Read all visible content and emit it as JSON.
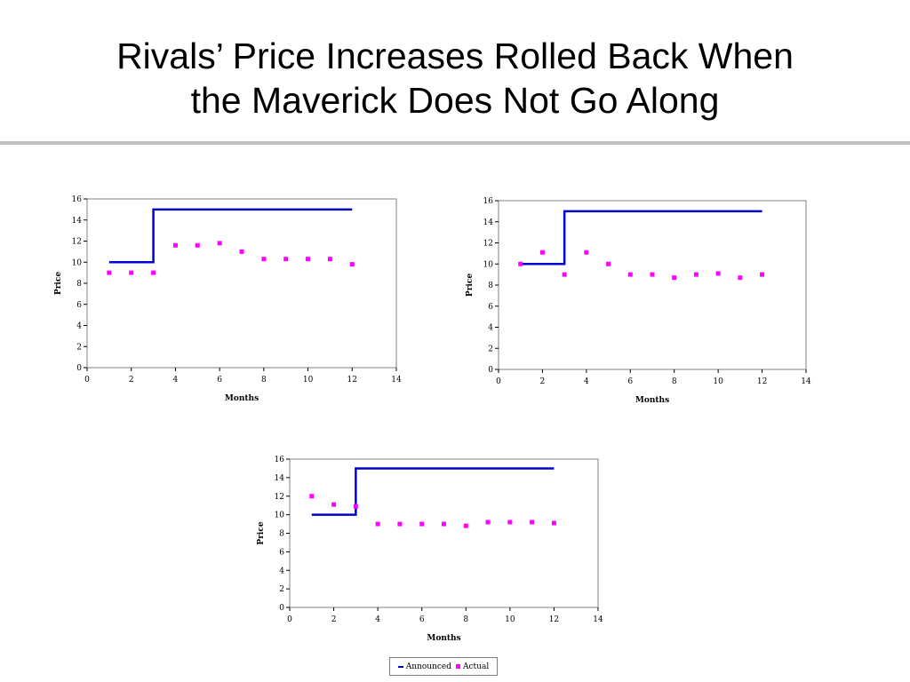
{
  "slide": {
    "title_line1": "Rivals’ Price Increases Rolled Back When",
    "title_line2": "the Maverick Does Not Go Along"
  },
  "legend": {
    "announced_label": "Announced",
    "actual_label": "Actual"
  },
  "colors": {
    "announced": "#0000cc",
    "actual": "#ff00ff",
    "divider": "#bfbfbf"
  },
  "chart_data": [
    {
      "type": "line",
      "xlabel": "Months",
      "ylabel": "Price",
      "xlim": [
        0,
        14
      ],
      "ylim": [
        0,
        16
      ],
      "xticks": [
        0,
        2,
        4,
        6,
        8,
        10,
        12,
        14
      ],
      "yticks": [
        0,
        2,
        4,
        6,
        8,
        10,
        12,
        14,
        16
      ],
      "grid": false,
      "series": [
        {
          "name": "Announced",
          "style": "step-line",
          "x": [
            1,
            3,
            3,
            12
          ],
          "y": [
            10,
            10,
            15,
            15
          ]
        },
        {
          "name": "Actual",
          "style": "markers",
          "x": [
            1,
            2,
            3,
            4,
            5,
            6,
            7,
            8,
            9,
            10,
            11,
            12
          ],
          "y": [
            9,
            9,
            9,
            11.6,
            11.6,
            11.8,
            11,
            10.3,
            10.3,
            10.3,
            10.3,
            9.8
          ]
        }
      ]
    },
    {
      "type": "line",
      "xlabel": "Months",
      "ylabel": "Price",
      "xlim": [
        0,
        14
      ],
      "ylim": [
        0,
        16
      ],
      "xticks": [
        0,
        2,
        4,
        6,
        8,
        10,
        12,
        14
      ],
      "yticks": [
        0,
        2,
        4,
        6,
        8,
        10,
        12,
        14,
        16
      ],
      "grid": false,
      "series": [
        {
          "name": "Announced",
          "style": "step-line",
          "x": [
            1,
            3,
            3,
            12
          ],
          "y": [
            10,
            10,
            15,
            15
          ]
        },
        {
          "name": "Actual",
          "style": "markers",
          "x": [
            1,
            2,
            3,
            4,
            5,
            6,
            7,
            8,
            9,
            10,
            11,
            12
          ],
          "y": [
            10,
            11.1,
            9,
            11.1,
            10,
            9,
            9,
            8.7,
            9,
            9.1,
            8.7,
            9
          ]
        }
      ]
    },
    {
      "type": "line",
      "xlabel": "Months",
      "ylabel": "Price",
      "xlim": [
        0,
        14
      ],
      "ylim": [
        0,
        16
      ],
      "xticks": [
        0,
        2,
        4,
        6,
        8,
        10,
        12,
        14
      ],
      "yticks": [
        0,
        2,
        4,
        6,
        8,
        10,
        12,
        14,
        16
      ],
      "grid": false,
      "series": [
        {
          "name": "Announced",
          "style": "step-line",
          "x": [
            1,
            3,
            3,
            12
          ],
          "y": [
            10,
            10,
            15,
            15
          ]
        },
        {
          "name": "Actual",
          "style": "markers",
          "x": [
            1,
            2,
            3,
            4,
            5,
            6,
            7,
            8,
            9,
            10,
            11,
            12
          ],
          "y": [
            12,
            11.1,
            10.9,
            9,
            9,
            9,
            9,
            8.8,
            9.2,
            9.2,
            9.2,
            9.1
          ]
        }
      ]
    }
  ]
}
